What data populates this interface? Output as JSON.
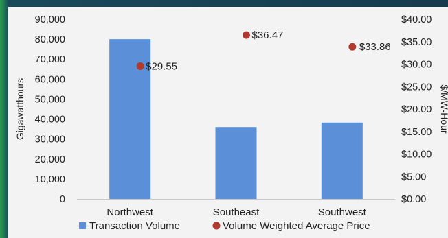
{
  "chart_data": {
    "type": "bar",
    "categories": [
      "Northwest",
      "Southeast",
      "Southwest"
    ],
    "series": [
      {
        "name": "Transaction Volume",
        "type": "bar",
        "axis": "left",
        "color": "#5b8fd8",
        "values": [
          80000,
          36000,
          38200
        ]
      },
      {
        "name": "Volume Weighted Average Price",
        "type": "scatter",
        "axis": "right",
        "color": "#b03a2e",
        "values": [
          29.55,
          36.47,
          33.86
        ]
      }
    ],
    "data_labels": [
      "$29.55",
      "$36.47",
      "$33.86"
    ],
    "title": "",
    "xlabel": "",
    "ylabel": "Gigawatthours",
    "ylabel_right": "$/MW-Hour",
    "ylim": [
      0,
      90000
    ],
    "ylim_right": [
      0,
      40
    ],
    "y_ticks": [
      "0",
      "10,000",
      "20,000",
      "30,000",
      "40,000",
      "50,000",
      "60,000",
      "70,000",
      "80,000",
      "90,000"
    ],
    "y_ticks_right": [
      "$0.00",
      "$5.00",
      "$10.00",
      "$15.00",
      "$20.00",
      "$25.00",
      "$30.00",
      "$35.00",
      "$40.00"
    ],
    "grid": false,
    "legend_position": "bottom"
  }
}
